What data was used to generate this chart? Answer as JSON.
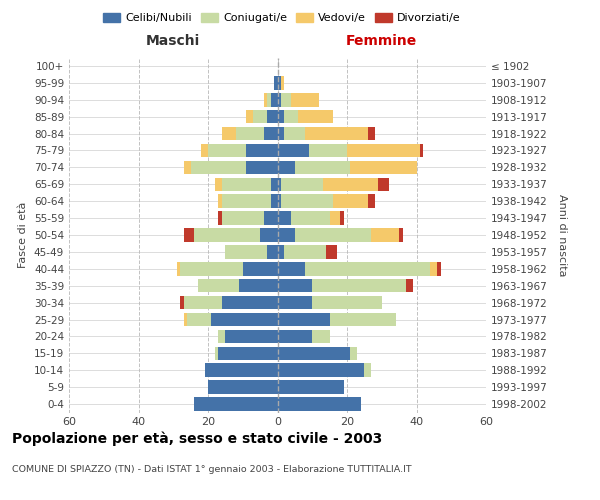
{
  "age_groups": [
    "0-4",
    "5-9",
    "10-14",
    "15-19",
    "20-24",
    "25-29",
    "30-34",
    "35-39",
    "40-44",
    "45-49",
    "50-54",
    "55-59",
    "60-64",
    "65-69",
    "70-74",
    "75-79",
    "80-84",
    "85-89",
    "90-94",
    "95-99",
    "100+"
  ],
  "birth_years": [
    "1998-2002",
    "1993-1997",
    "1988-1992",
    "1983-1987",
    "1978-1982",
    "1973-1977",
    "1968-1972",
    "1963-1967",
    "1958-1962",
    "1953-1957",
    "1948-1952",
    "1943-1947",
    "1938-1942",
    "1933-1937",
    "1928-1932",
    "1923-1927",
    "1918-1922",
    "1913-1917",
    "1908-1912",
    "1903-1907",
    "≤ 1902"
  ],
  "maschi": {
    "celibi": [
      24,
      20,
      21,
      17,
      15,
      19,
      16,
      11,
      10,
      3,
      5,
      4,
      2,
      2,
      9,
      9,
      4,
      3,
      2,
      1,
      0
    ],
    "coniugati": [
      0,
      0,
      0,
      1,
      2,
      7,
      11,
      12,
      18,
      12,
      19,
      12,
      14,
      14,
      16,
      11,
      8,
      4,
      1,
      0,
      0
    ],
    "vedovi": [
      0,
      0,
      0,
      0,
      0,
      1,
      0,
      0,
      1,
      0,
      0,
      0,
      1,
      2,
      2,
      2,
      4,
      2,
      1,
      0,
      0
    ],
    "divorziati": [
      0,
      0,
      0,
      0,
      0,
      0,
      1,
      0,
      0,
      0,
      3,
      1,
      0,
      0,
      0,
      0,
      0,
      0,
      0,
      0,
      0
    ]
  },
  "femmine": {
    "nubili": [
      24,
      19,
      25,
      21,
      10,
      15,
      10,
      10,
      8,
      2,
      5,
      4,
      1,
      1,
      5,
      9,
      2,
      2,
      1,
      1,
      0
    ],
    "coniugate": [
      0,
      0,
      2,
      2,
      5,
      19,
      20,
      27,
      36,
      12,
      22,
      11,
      15,
      12,
      16,
      11,
      6,
      4,
      3,
      0,
      0
    ],
    "vedove": [
      0,
      0,
      0,
      0,
      0,
      0,
      0,
      0,
      2,
      0,
      8,
      3,
      10,
      16,
      19,
      21,
      18,
      10,
      8,
      1,
      0
    ],
    "divorziate": [
      0,
      0,
      0,
      0,
      0,
      0,
      0,
      2,
      1,
      3,
      1,
      1,
      2,
      3,
      0,
      1,
      2,
      0,
      0,
      0,
      0
    ]
  },
  "colors": {
    "celibi": "#4472A8",
    "coniugati": "#C8DBA4",
    "vedovi": "#F5C96A",
    "divorziati": "#C0392B"
  },
  "title": "Popolazione per età, sesso e stato civile - 2003",
  "subtitle": "COMUNE DI SPIAZZO (TN) - Dati ISTAT 1° gennaio 2003 - Elaborazione TUTTITALIA.IT",
  "xlabel_left": "Maschi",
  "xlabel_right": "Femmine",
  "ylabel_left": "Fasce di età",
  "ylabel_right": "Anni di nascita",
  "xlim": 60,
  "background_color": "#ffffff",
  "grid_color": "#bbbbbb"
}
